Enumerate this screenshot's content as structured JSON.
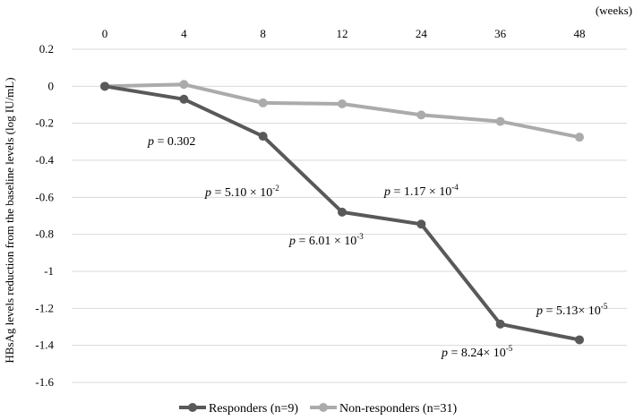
{
  "chart_data": {
    "type": "line",
    "x": [
      "0",
      "4",
      "8",
      "12",
      "24",
      "36",
      "48"
    ],
    "x_unit": "(weeks)",
    "ylabel": "HBsAg levels reduction from the baseline levels (log IU/mL)",
    "ylim": [
      -1.6,
      0.2
    ],
    "yticks": [
      "0.2",
      "0",
      "-0.2",
      "-0.4",
      "-0.6",
      "-0.8",
      "-1",
      "-1.2",
      "-1.4",
      "-1.6"
    ],
    "ytick_values": [
      0.2,
      0,
      -0.2,
      -0.4,
      -0.6,
      -0.8,
      -1.0,
      -1.2,
      -1.4,
      -1.6
    ],
    "grid": "horizontal",
    "legend_position": "bottom",
    "series": [
      {
        "name": "Responders (n=9)",
        "color": "#595959",
        "values": [
          0,
          -0.07,
          -0.27,
          -0.68,
          -0.745,
          -1.285,
          -1.37
        ]
      },
      {
        "name": "Non-responders (n=31)",
        "color": "#ababab",
        "values": [
          0,
          0.01,
          -0.09,
          -0.095,
          -0.155,
          -0.19,
          -0.275
        ]
      }
    ],
    "annotations": [
      {
        "p": "p",
        "eq": " = 0.302",
        "exp": ""
      },
      {
        "p": "p",
        "eq": " = 5.10 × 10",
        "exp": "-2"
      },
      {
        "p": "p",
        "eq": " = 6.01 × 10",
        "exp": "-3"
      },
      {
        "p": "p",
        "eq": " = 1.17 × 10",
        "exp": "-4"
      },
      {
        "p": "p",
        "eq": " = 8.24× 10",
        "exp": "-5"
      },
      {
        "p": "p",
        "eq": " = 5.13× 10",
        "exp": "-5"
      }
    ]
  }
}
